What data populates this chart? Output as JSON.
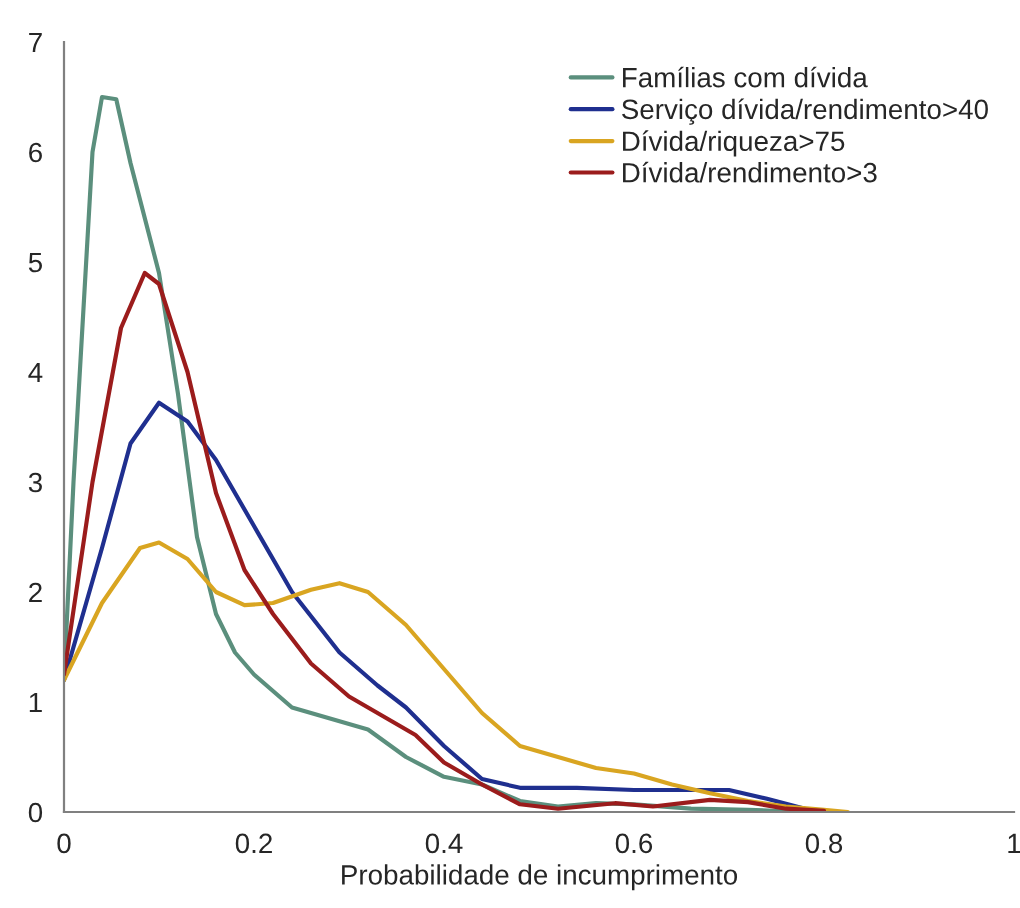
{
  "chart_data": {
    "type": "line",
    "xlabel": "Probabilidade de incumprimento",
    "xlim": [
      0,
      1
    ],
    "xticks": [
      0,
      0.2,
      0.4,
      0.6,
      0.8,
      1
    ],
    "ylim": [
      0,
      7
    ],
    "yticks": [
      0,
      1,
      2,
      3,
      4,
      5,
      6,
      7
    ],
    "grid": false,
    "legend": "top right",
    "marker": "none",
    "line_style": "solid",
    "series": [
      {
        "name": "Famílias com dívida",
        "color": "#5b8f7d",
        "x": [
          0,
          0.01,
          0.03,
          0.04,
          0.055,
          0.07,
          0.1,
          0.12,
          0.14,
          0.16,
          0.18,
          0.2,
          0.24,
          0.28,
          0.32,
          0.36,
          0.4,
          0.44,
          0.48,
          0.52,
          0.56,
          0.6,
          0.66,
          0.72,
          0.78
        ],
        "values": [
          1.2,
          3.0,
          6.0,
          6.5,
          6.48,
          5.9,
          4.9,
          3.8,
          2.5,
          1.8,
          1.45,
          1.25,
          0.95,
          0.85,
          0.75,
          0.5,
          0.32,
          0.25,
          0.1,
          0.05,
          0.08,
          0.07,
          0.03,
          0.02,
          0.0
        ]
      },
      {
        "name": "Serviço dívida/rendimento>40",
        "color": "#1f2f8f",
        "x": [
          0,
          0.04,
          0.07,
          0.1,
          0.13,
          0.16,
          0.2,
          0.24,
          0.29,
          0.33,
          0.36,
          0.4,
          0.44,
          0.48,
          0.54,
          0.6,
          0.66,
          0.7,
          0.74,
          0.78,
          0.8
        ],
        "values": [
          1.2,
          2.4,
          3.35,
          3.72,
          3.55,
          3.2,
          2.6,
          2.0,
          1.45,
          1.15,
          0.95,
          0.6,
          0.3,
          0.22,
          0.22,
          0.2,
          0.2,
          0.2,
          0.12,
          0.03,
          0.01
        ]
      },
      {
        "name": "Dívida/riqueza>75",
        "color": "#d9a521",
        "x": [
          0,
          0.04,
          0.08,
          0.1,
          0.13,
          0.16,
          0.19,
          0.22,
          0.26,
          0.29,
          0.32,
          0.36,
          0.4,
          0.44,
          0.48,
          0.52,
          0.56,
          0.6,
          0.64,
          0.68,
          0.72,
          0.76,
          0.8,
          0.825
        ],
        "values": [
          1.2,
          1.9,
          2.4,
          2.45,
          2.3,
          2.0,
          1.88,
          1.9,
          2.02,
          2.08,
          2.0,
          1.7,
          1.3,
          0.9,
          0.6,
          0.5,
          0.4,
          0.35,
          0.25,
          0.17,
          0.1,
          0.05,
          0.02,
          0.0
        ]
      },
      {
        "name": "Dívida/rendimento>3",
        "color": "#9b1c1c",
        "x": [
          0,
          0.03,
          0.06,
          0.085,
          0.1,
          0.13,
          0.16,
          0.19,
          0.22,
          0.26,
          0.3,
          0.34,
          0.37,
          0.4,
          0.44,
          0.48,
          0.52,
          0.58,
          0.62,
          0.68,
          0.72,
          0.76,
          0.8
        ],
        "values": [
          1.25,
          3.0,
          4.4,
          4.9,
          4.8,
          4.0,
          2.9,
          2.2,
          1.8,
          1.35,
          1.05,
          0.85,
          0.7,
          0.45,
          0.25,
          0.07,
          0.03,
          0.08,
          0.05,
          0.11,
          0.09,
          0.03,
          0.01
        ]
      }
    ]
  }
}
